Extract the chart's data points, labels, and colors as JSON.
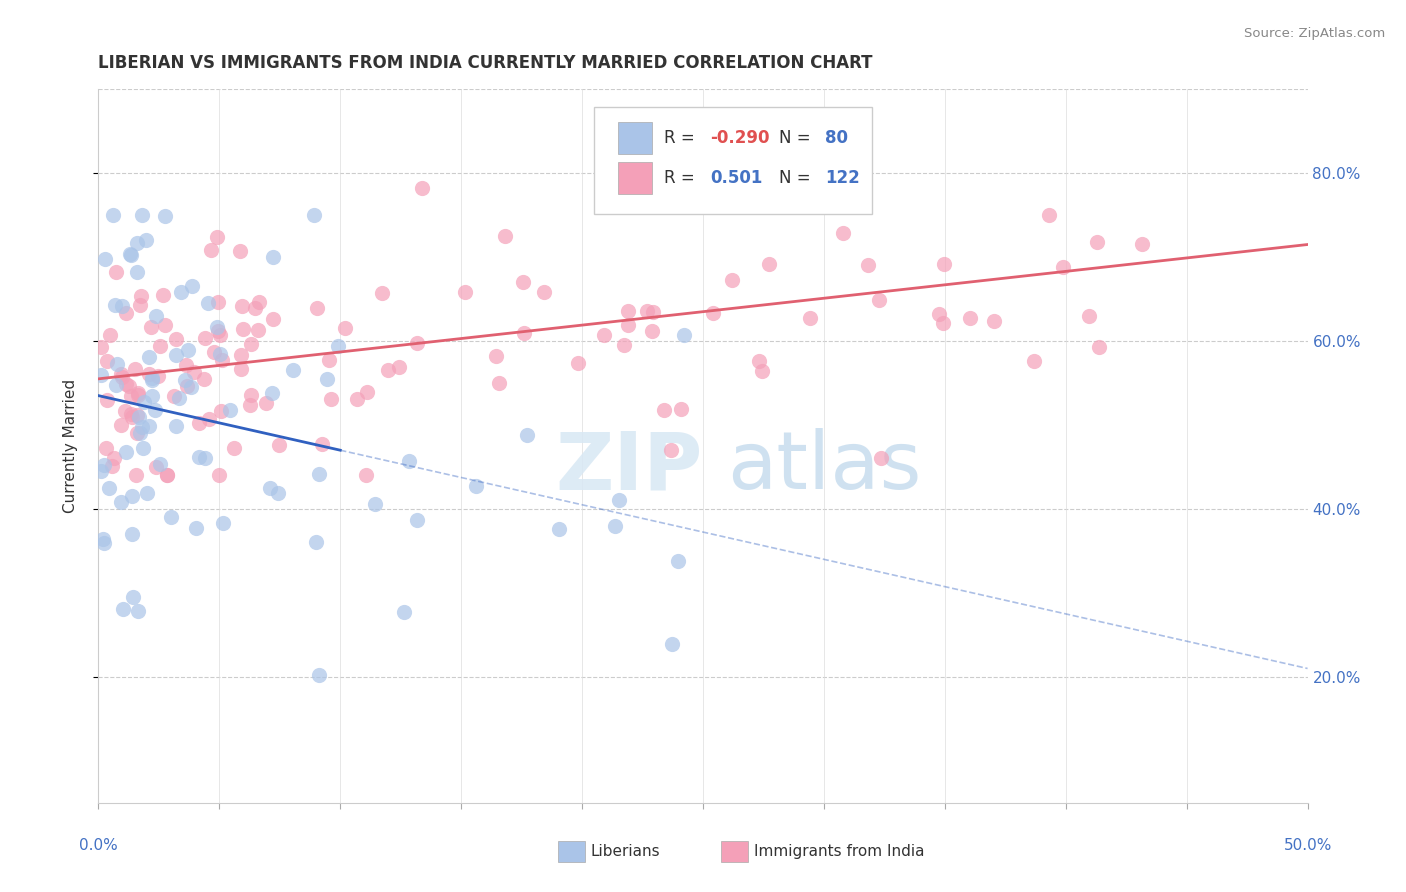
{
  "title": "LIBERIAN VS IMMIGRANTS FROM INDIA CURRENTLY MARRIED CORRELATION CHART",
  "source": "Source: ZipAtlas.com",
  "ylabel": "Currently Married",
  "ylabel_right_ticks": [
    "20.0%",
    "40.0%",
    "60.0%",
    "80.0%"
  ],
  "ylabel_right_vals": [
    0.2,
    0.4,
    0.6,
    0.8
  ],
  "xmin": 0.0,
  "xmax": 0.5,
  "ymin": 0.05,
  "ymax": 0.9,
  "blue_color": "#aac4e8",
  "pink_color": "#f4a0b8",
  "blue_line_color": "#3060c0",
  "pink_line_color": "#e06070",
  "blue_r": -0.29,
  "pink_r": 0.501,
  "blue_n": 80,
  "pink_n": 122,
  "R_blue": -0.29,
  "R_pink": 0.501,
  "blue_intercept": 0.535,
  "blue_slope": -0.65,
  "pink_intercept": 0.555,
  "pink_slope": 0.32
}
